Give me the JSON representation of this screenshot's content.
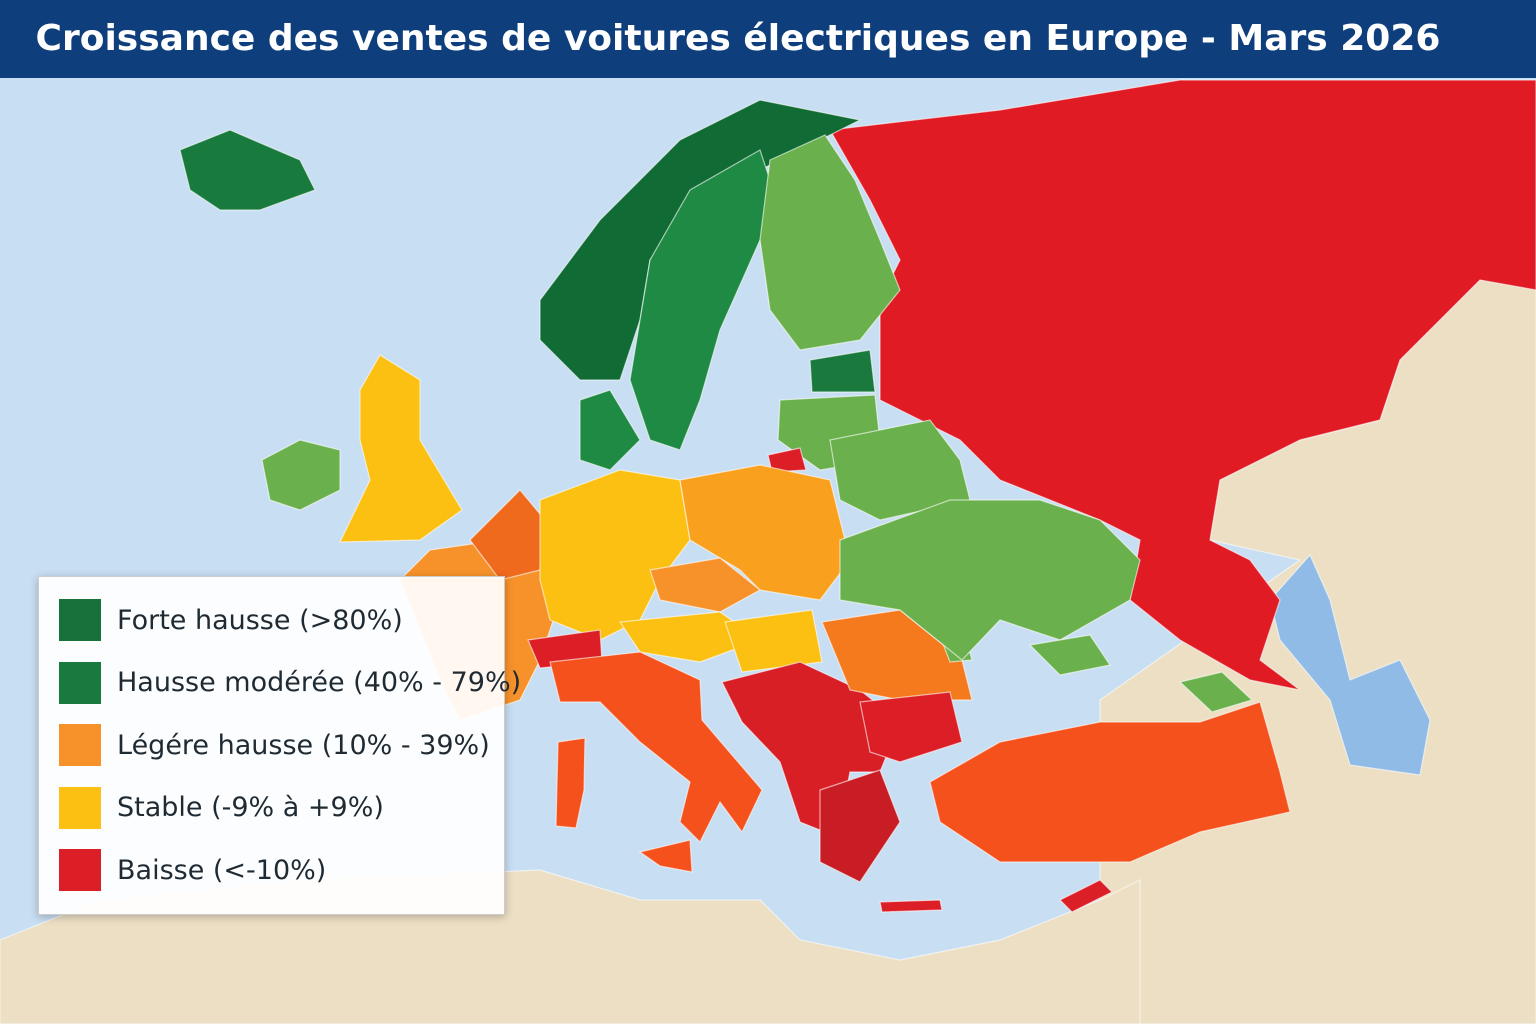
{
  "header": {
    "title": "Croissance des ventes de voitures électriques en Europe - Mars 2026"
  },
  "legend": {
    "items": [
      {
        "label": "Forte hausse (>80%)",
        "color": "#16713a"
      },
      {
        "label": "Hausse modérée (40% - 79%)",
        "color": "#1a7a3e"
      },
      {
        "label": "Légére hausse (10% - 39%)",
        "color": "#f7922a"
      },
      {
        "label": "Stable (-9% à +9%)",
        "color": "#fbc012"
      },
      {
        "label": "Baisse (<-10%)",
        "color": "#dc1f26"
      }
    ]
  }
}
